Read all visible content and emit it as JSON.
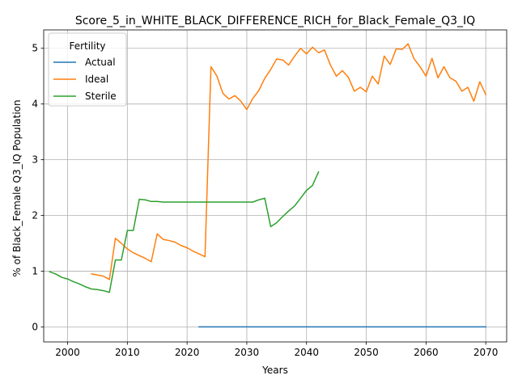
{
  "chart_data": {
    "type": "line",
    "title": "Score_5_in_WHITE_BLACK_DIFFERENCE_RICH_for_Black_Female_Q3_IQ",
    "xlabel": "Years",
    "ylabel": "% of Black_Female Q3_IQ Population",
    "xlim": [
      1996,
      2073.5
    ],
    "ylim": [
      -0.27,
      5.33
    ],
    "xticks": [
      2000,
      2010,
      2020,
      2030,
      2040,
      2050,
      2060,
      2070
    ],
    "yticks": [
      0,
      1,
      2,
      3,
      4,
      5
    ],
    "grid": true,
    "legend": {
      "title": "Fertility",
      "placement": "top-left"
    },
    "series": [
      {
        "name": "Actual",
        "color": "#1f77b4",
        "points": [
          [
            2022,
            0.0
          ],
          [
            2030,
            0.0
          ],
          [
            2040,
            0.0
          ],
          [
            2050,
            0.0
          ],
          [
            2060,
            0.0
          ],
          [
            2070,
            0.0
          ]
        ]
      },
      {
        "name": "Ideal",
        "color": "#ff7f0e",
        "points": [
          [
            2004,
            0.95
          ],
          [
            2005,
            0.93
          ],
          [
            2006,
            0.91
          ],
          [
            2007,
            0.85
          ],
          [
            2008,
            1.59
          ],
          [
            2009,
            1.5
          ],
          [
            2010,
            1.4
          ],
          [
            2011,
            1.33
          ],
          [
            2012,
            1.28
          ],
          [
            2013,
            1.23
          ],
          [
            2014,
            1.17
          ],
          [
            2015,
            1.67
          ],
          [
            2016,
            1.57
          ],
          [
            2017,
            1.55
          ],
          [
            2018,
            1.52
          ],
          [
            2019,
            1.46
          ],
          [
            2020,
            1.42
          ],
          [
            2021,
            1.36
          ],
          [
            2022,
            1.31
          ],
          [
            2023,
            1.26
          ],
          [
            2024,
            4.67
          ],
          [
            2025,
            4.5
          ],
          [
            2026,
            4.19
          ],
          [
            2027,
            4.09
          ],
          [
            2028,
            4.15
          ],
          [
            2029,
            4.05
          ],
          [
            2030,
            3.9
          ],
          [
            2031,
            4.1
          ],
          [
            2032,
            4.24
          ],
          [
            2033,
            4.46
          ],
          [
            2034,
            4.62
          ],
          [
            2035,
            4.81
          ],
          [
            2036,
            4.79
          ],
          [
            2037,
            4.7
          ],
          [
            2038,
            4.86
          ],
          [
            2039,
            5.0
          ],
          [
            2040,
            4.9
          ],
          [
            2041,
            5.02
          ],
          [
            2042,
            4.92
          ],
          [
            2043,
            4.97
          ],
          [
            2044,
            4.7
          ],
          [
            2045,
            4.5
          ],
          [
            2046,
            4.6
          ],
          [
            2047,
            4.48
          ],
          [
            2048,
            4.23
          ],
          [
            2049,
            4.3
          ],
          [
            2050,
            4.22
          ],
          [
            2051,
            4.5
          ],
          [
            2052,
            4.36
          ],
          [
            2053,
            4.86
          ],
          [
            2054,
            4.71
          ],
          [
            2055,
            4.99
          ],
          [
            2056,
            4.98
          ],
          [
            2057,
            5.08
          ],
          [
            2058,
            4.81
          ],
          [
            2059,
            4.67
          ],
          [
            2060,
            4.5
          ],
          [
            2061,
            4.82
          ],
          [
            2062,
            4.47
          ],
          [
            2063,
            4.67
          ],
          [
            2064,
            4.47
          ],
          [
            2065,
            4.41
          ],
          [
            2066,
            4.23
          ],
          [
            2067,
            4.3
          ],
          [
            2068,
            4.05
          ],
          [
            2069,
            4.4
          ],
          [
            2070,
            4.17
          ]
        ]
      },
      {
        "name": "Sterile",
        "color": "#2ca02c",
        "points": [
          [
            1997,
            0.99
          ],
          [
            1998,
            0.95
          ],
          [
            1999,
            0.89
          ],
          [
            2000,
            0.86
          ],
          [
            2001,
            0.81
          ],
          [
            2002,
            0.77
          ],
          [
            2003,
            0.72
          ],
          [
            2004,
            0.68
          ],
          [
            2005,
            0.67
          ],
          [
            2006,
            0.65
          ],
          [
            2007,
            0.62
          ],
          [
            2008,
            1.2
          ],
          [
            2009,
            1.2
          ],
          [
            2010,
            1.73
          ],
          [
            2011,
            1.73
          ],
          [
            2012,
            2.29
          ],
          [
            2013,
            2.28
          ],
          [
            2014,
            2.25
          ],
          [
            2015,
            2.25
          ],
          [
            2016,
            2.24
          ],
          [
            2017,
            2.24
          ],
          [
            2018,
            2.24
          ],
          [
            2019,
            2.24
          ],
          [
            2020,
            2.24
          ],
          [
            2021,
            2.24
          ],
          [
            2022,
            2.24
          ],
          [
            2023,
            2.24
          ],
          [
            2024,
            2.24
          ],
          [
            2025,
            2.24
          ],
          [
            2026,
            2.24
          ],
          [
            2027,
            2.24
          ],
          [
            2028,
            2.24
          ],
          [
            2029,
            2.24
          ],
          [
            2030,
            2.24
          ],
          [
            2031,
            2.24
          ],
          [
            2032,
            2.28
          ],
          [
            2033,
            2.31
          ],
          [
            2034,
            1.8
          ],
          [
            2035,
            1.87
          ],
          [
            2036,
            1.98
          ],
          [
            2037,
            2.08
          ],
          [
            2038,
            2.17
          ],
          [
            2039,
            2.31
          ],
          [
            2040,
            2.45
          ],
          [
            2041,
            2.54
          ],
          [
            2042,
            2.78
          ]
        ]
      }
    ]
  }
}
